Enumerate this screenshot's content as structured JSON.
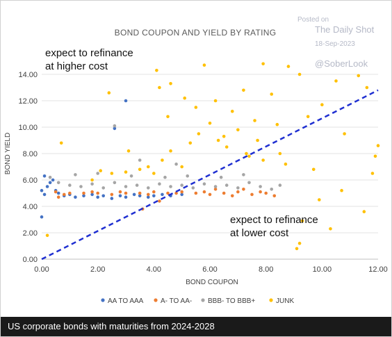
{
  "chart_data": {
    "type": "scatter",
    "title": "BOND COUPON AND YIELD BY RATING",
    "xlabel": "BOND COUPON",
    "ylabel": "BOND YIELD",
    "xlim": [
      0,
      12
    ],
    "ylim": [
      0,
      15
    ],
    "x_ticks": [
      "0.00",
      "2.00",
      "4.00",
      "6.00",
      "8.00",
      "10.00",
      "12.00"
    ],
    "y_ticks": [
      "0.00",
      "2.00",
      "4.00",
      "6.00",
      "8.00",
      "10.00",
      "12.00",
      "14.00"
    ],
    "grid": "horizontal",
    "legend_position": "bottom",
    "series": [
      {
        "name": "AA TO AAA",
        "color": "#4472c4",
        "points": [
          [
            0.2,
            5.5
          ],
          [
            0.3,
            5.8
          ],
          [
            0.4,
            6.0
          ],
          [
            0.5,
            5.2
          ],
          [
            0.6,
            5.0
          ],
          [
            0.8,
            4.8
          ],
          [
            1.0,
            4.9
          ],
          [
            1.2,
            4.7
          ],
          [
            1.5,
            4.8
          ],
          [
            1.8,
            4.9
          ],
          [
            2.0,
            4.7
          ],
          [
            2.2,
            4.8
          ],
          [
            2.5,
            4.6
          ],
          [
            2.8,
            4.8
          ],
          [
            3.0,
            4.7
          ],
          [
            3.3,
            4.9
          ],
          [
            3.5,
            4.8
          ],
          [
            3.8,
            4.7
          ],
          [
            4.0,
            4.8
          ],
          [
            4.3,
            4.9
          ],
          [
            4.6,
            4.8
          ],
          [
            5.0,
            4.9
          ],
          [
            0.0,
            5.2
          ],
          [
            0.0,
            3.2
          ],
          [
            0.1,
            4.9
          ],
          [
            0.1,
            6.3
          ],
          [
            3.0,
            12.0
          ],
          [
            2.6,
            9.9
          ]
        ]
      },
      {
        "name": "A- TO AA-",
        "color": "#ed7d31",
        "points": [
          [
            0.5,
            5.1
          ],
          [
            1.0,
            5.0
          ],
          [
            1.5,
            5.0
          ],
          [
            2.0,
            5.0
          ],
          [
            2.5,
            4.9
          ],
          [
            3.0,
            5.0
          ],
          [
            3.5,
            5.0
          ],
          [
            4.0,
            5.1
          ],
          [
            4.5,
            5.0
          ],
          [
            5.0,
            5.1
          ],
          [
            5.5,
            5.0
          ],
          [
            6.0,
            4.9
          ],
          [
            6.5,
            5.0
          ],
          [
            7.0,
            5.1
          ],
          [
            7.5,
            4.9
          ],
          [
            8.0,
            5.0
          ],
          [
            0.8,
            4.9
          ],
          [
            1.8,
            5.1
          ],
          [
            2.8,
            5.1
          ],
          [
            3.8,
            4.9
          ],
          [
            4.8,
            5.0
          ],
          [
            5.8,
            5.1
          ],
          [
            6.8,
            4.8
          ],
          [
            7.8,
            5.1
          ],
          [
            4.2,
            4.4
          ],
          [
            3.6,
            3.8
          ],
          [
            6.2,
            5.3
          ],
          [
            7.2,
            5.3
          ],
          [
            8.3,
            4.8
          ],
          [
            0.6,
            4.7
          ]
        ]
      },
      {
        "name": "BBB- TO BBB+",
        "color": "#a5a5a5",
        "points": [
          [
            0.3,
            6.2
          ],
          [
            0.6,
            5.8
          ],
          [
            1.0,
            5.6
          ],
          [
            1.4,
            5.5
          ],
          [
            1.8,
            5.7
          ],
          [
            2.2,
            5.4
          ],
          [
            2.6,
            5.8
          ],
          [
            3.0,
            5.5
          ],
          [
            3.4,
            5.6
          ],
          [
            3.8,
            5.4
          ],
          [
            4.2,
            5.7
          ],
          [
            4.6,
            5.5
          ],
          [
            5.0,
            5.6
          ],
          [
            5.4,
            5.4
          ],
          [
            5.8,
            5.7
          ],
          [
            6.2,
            5.5
          ],
          [
            6.6,
            5.6
          ],
          [
            7.0,
            5.4
          ],
          [
            7.4,
            5.8
          ],
          [
            7.8,
            5.5
          ],
          [
            8.2,
            5.3
          ],
          [
            1.2,
            6.4
          ],
          [
            2.0,
            6.5
          ],
          [
            3.2,
            6.3
          ],
          [
            4.4,
            6.2
          ],
          [
            5.2,
            6.3
          ],
          [
            6.4,
            6.2
          ],
          [
            7.2,
            6.4
          ],
          [
            2.6,
            10.1
          ],
          [
            3.5,
            7.5
          ],
          [
            4.8,
            7.2
          ],
          [
            8.5,
            5.6
          ]
        ]
      },
      {
        "name": "JUNK",
        "color": "#ffc000",
        "points": [
          [
            4.0,
            6.5
          ],
          [
            4.3,
            7.5
          ],
          [
            4.6,
            8.2
          ],
          [
            5.0,
            7.0
          ],
          [
            5.3,
            8.8
          ],
          [
            5.6,
            9.5
          ],
          [
            6.0,
            10.3
          ],
          [
            6.3,
            9.0
          ],
          [
            6.6,
            8.5
          ],
          [
            7.0,
            9.8
          ],
          [
            7.3,
            8.0
          ],
          [
            7.6,
            10.5
          ],
          [
            7.9,
            7.5
          ],
          [
            4.5,
            10.8
          ],
          [
            5.5,
            11.5
          ],
          [
            6.2,
            12.0
          ],
          [
            6.8,
            11.2
          ],
          [
            7.2,
            12.8
          ],
          [
            4.1,
            14.3
          ],
          [
            4.2,
            13.0
          ],
          [
            5.8,
            14.7
          ],
          [
            7.9,
            14.8
          ],
          [
            8.8,
            14.6
          ],
          [
            9.2,
            14.0
          ],
          [
            10.5,
            13.5
          ],
          [
            11.3,
            13.9
          ],
          [
            11.6,
            13.0
          ],
          [
            12.0,
            8.6
          ],
          [
            11.9,
            7.8
          ],
          [
            11.8,
            6.5
          ],
          [
            11.5,
            3.6
          ],
          [
            10.3,
            2.3
          ],
          [
            9.3,
            2.9
          ],
          [
            9.1,
            0.8
          ],
          [
            9.2,
            1.2
          ],
          [
            9.7,
            6.8
          ],
          [
            8.5,
            8.0
          ],
          [
            8.7,
            7.2
          ],
          [
            9.5,
            10.8
          ],
          [
            10.0,
            11.7
          ],
          [
            10.8,
            9.5
          ],
          [
            3.8,
            7.0
          ],
          [
            3.5,
            6.8
          ],
          [
            3.0,
            6.6
          ],
          [
            2.5,
            6.5
          ],
          [
            2.1,
            6.7
          ],
          [
            1.8,
            6.0
          ],
          [
            0.7,
            8.8
          ],
          [
            0.2,
            1.8
          ],
          [
            3.1,
            8.2
          ],
          [
            2.4,
            12.6
          ],
          [
            4.6,
            13.3
          ],
          [
            5.1,
            12.2
          ],
          [
            6.5,
            9.3
          ],
          [
            7.4,
            7.8
          ],
          [
            7.7,
            9.0
          ],
          [
            8.2,
            12.5
          ],
          [
            8.4,
            10.2
          ],
          [
            9.9,
            4.5
          ],
          [
            10.7,
            5.2
          ]
        ]
      }
    ],
    "annotations": {
      "upper_line1": "expect to refinance",
      "upper_line2": "at higher cost",
      "lower_line1": "expect to refinance",
      "lower_line2": "at lower cost"
    },
    "reference_line": {
      "color": "#1f2fd1",
      "style": "dashed",
      "from": [
        0,
        0
      ],
      "to": [
        12,
        12.8
      ]
    }
  },
  "watermark": {
    "posted_on": "Posted on",
    "source": "The Daily Shot",
    "date": "18-Sep-2023",
    "handle": "@SoberLook"
  },
  "footer": {
    "caption": "US corporate bonds with maturities from 2024-2028"
  }
}
